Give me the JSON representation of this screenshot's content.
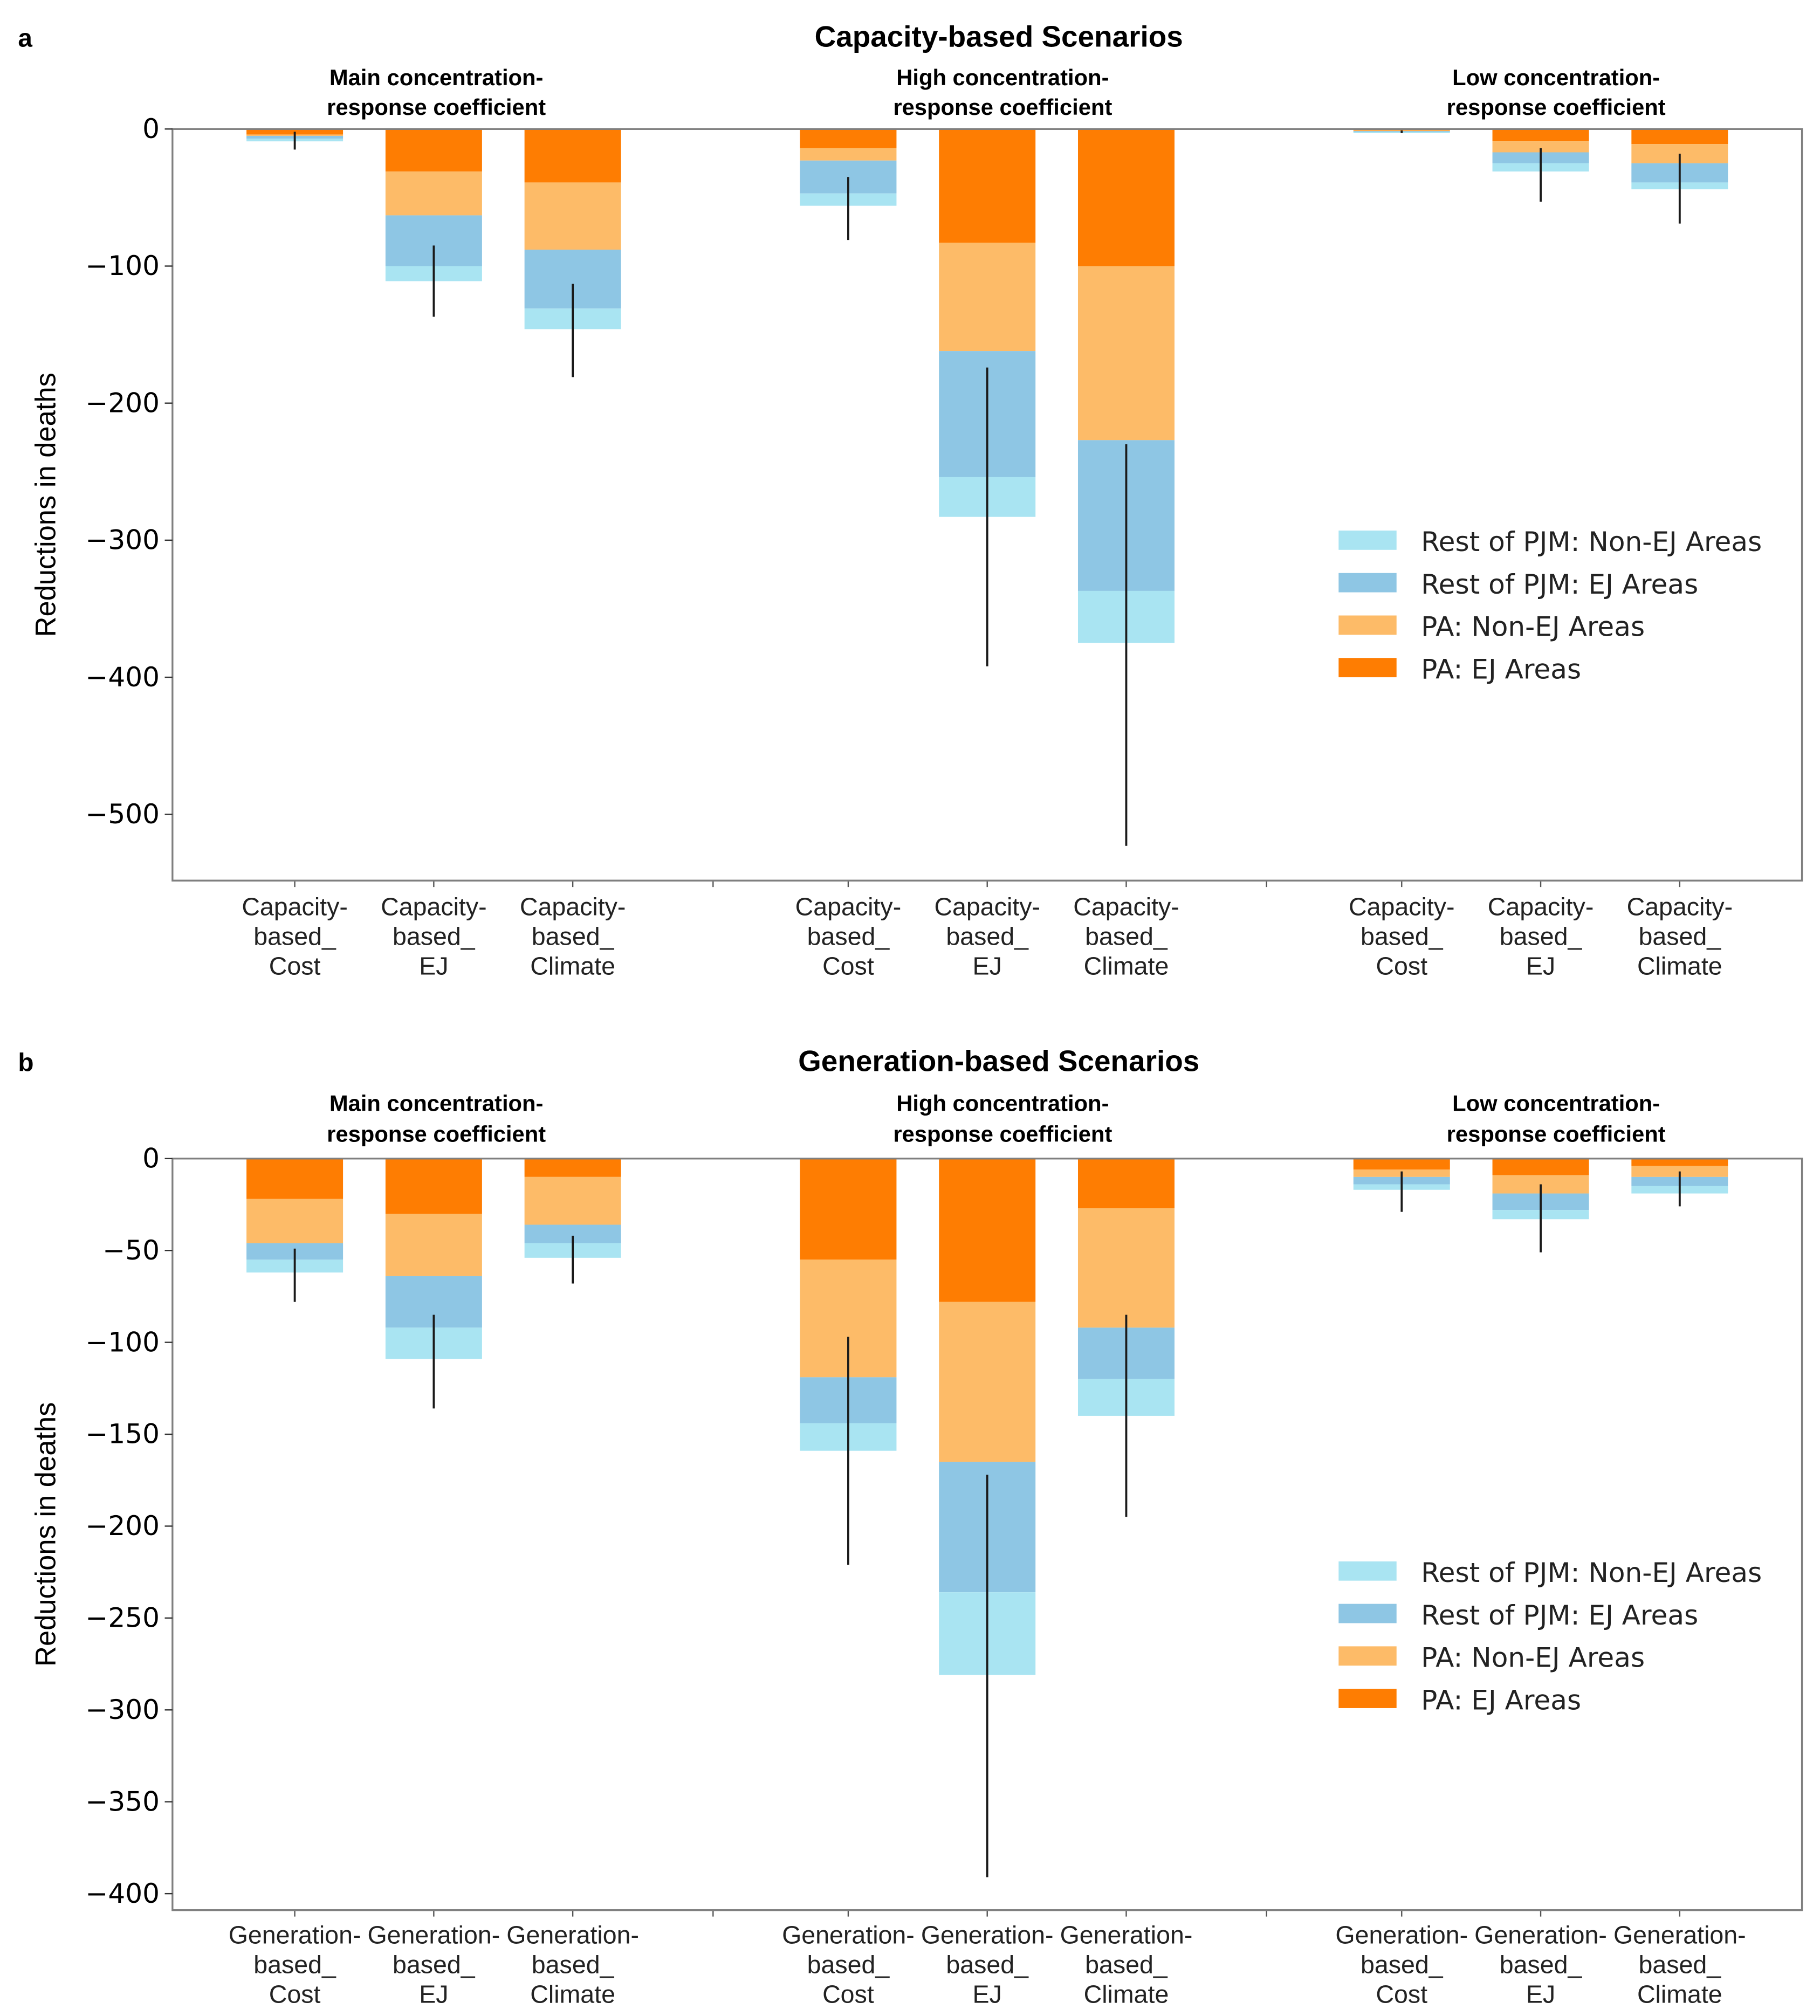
{
  "chart_data": [
    {
      "type": "bar",
      "stacked": true,
      "panel_letter": "a",
      "title": "Capacity-based Scenarios",
      "ylabel": "Reductions in deaths",
      "xlabel": "",
      "ylim": [
        -550,
        0
      ],
      "yticks": [
        0,
        -100,
        -200,
        -300,
        -400,
        -500
      ],
      "ytick_labels": [
        "0",
        "−100",
        "−200",
        "−300",
        "−400",
        "−500"
      ],
      "legend_position": "center-right",
      "grid": false,
      "groups": [
        {
          "title_lines": [
            "Main concentration-",
            "response coefficient"
          ],
          "bars": [
            {
              "label_lines": [
                "Capacity-",
                "based_",
                "Cost"
              ],
              "cumulative": {
                "pa_ej": -4,
                "pa_non_ej": -5,
                "rest_ej": -7,
                "rest_non_ej": -9
              },
              "error": [
                -2,
                -15
              ]
            },
            {
              "label_lines": [
                "Capacity-",
                "based_",
                "EJ"
              ],
              "cumulative": {
                "pa_ej": -31,
                "pa_non_ej": -63,
                "rest_ej": -100,
                "rest_non_ej": -111
              },
              "error": [
                -85,
                -137
              ]
            },
            {
              "label_lines": [
                "Capacity-",
                "based_",
                "Climate"
              ],
              "cumulative": {
                "pa_ej": -39,
                "pa_non_ej": -88,
                "rest_ej": -131,
                "rest_non_ej": -146
              },
              "error": [
                -113,
                -181
              ]
            }
          ]
        },
        {
          "title_lines": [
            "High concentration-",
            "response coefficient"
          ],
          "bars": [
            {
              "label_lines": [
                "Capacity-",
                "based_",
                "Cost"
              ],
              "cumulative": {
                "pa_ej": -14,
                "pa_non_ej": -23,
                "rest_ej": -47,
                "rest_non_ej": -56
              },
              "error": [
                -35,
                -81
              ]
            },
            {
              "label_lines": [
                "Capacity-",
                "based_",
                "EJ"
              ],
              "cumulative": {
                "pa_ej": -83,
                "pa_non_ej": -162,
                "rest_ej": -254,
                "rest_non_ej": -283
              },
              "error": [
                -174,
                -392
              ]
            },
            {
              "label_lines": [
                "Capacity-",
                "based_",
                "Climate"
              ],
              "cumulative": {
                "pa_ej": -100,
                "pa_non_ej": -227,
                "rest_ej": -337,
                "rest_non_ej": -375
              },
              "error": [
                -230,
                -523
              ]
            }
          ]
        },
        {
          "title_lines": [
            "Low concentration-",
            "response coefficient"
          ],
          "bars": [
            {
              "label_lines": [
                "Capacity-",
                "based_",
                "Cost"
              ],
              "cumulative": {
                "pa_ej": -1,
                "pa_non_ej": -1.5,
                "rest_ej": -2,
                "rest_non_ej": -3
              },
              "error": [
                -1,
                -3
              ]
            },
            {
              "label_lines": [
                "Capacity-",
                "based_",
                "EJ"
              ],
              "cumulative": {
                "pa_ej": -9,
                "pa_non_ej": -17,
                "rest_ej": -25,
                "rest_non_ej": -31
              },
              "error": [
                -14,
                -53
              ]
            },
            {
              "label_lines": [
                "Capacity-",
                "based_",
                "Climate"
              ],
              "cumulative": {
                "pa_ej": -11,
                "pa_non_ej": -25,
                "rest_ej": -39,
                "rest_non_ej": -44
              },
              "error": [
                -18,
                -69
              ]
            }
          ]
        }
      ]
    },
    {
      "type": "bar",
      "stacked": true,
      "panel_letter": "b",
      "title": "Generation-based Scenarios",
      "ylabel": "Reductions in deaths",
      "xlabel": "",
      "ylim": [
        -410,
        0
      ],
      "yticks": [
        0,
        -50,
        -100,
        -150,
        -200,
        -250,
        -300,
        -350,
        -400
      ],
      "ytick_labels": [
        "0",
        "−50",
        "−100",
        "−150",
        "−200",
        "−250",
        "−300",
        "−350",
        "−400"
      ],
      "legend_position": "center-right",
      "grid": false,
      "groups": [
        {
          "title_lines": [
            "Main concentration-",
            "response coefficient"
          ],
          "bars": [
            {
              "label_lines": [
                "Generation-",
                "based_",
                "Cost"
              ],
              "cumulative": {
                "pa_ej": -22,
                "pa_non_ej": -46,
                "rest_ej": -55,
                "rest_non_ej": -62
              },
              "error": [
                -49,
                -78
              ]
            },
            {
              "label_lines": [
                "Generation-",
                "based_",
                "EJ"
              ],
              "cumulative": {
                "pa_ej": -30,
                "pa_non_ej": -64,
                "rest_ej": -92,
                "rest_non_ej": -109
              },
              "error": [
                -85,
                -136
              ]
            },
            {
              "label_lines": [
                "Generation-",
                "based_",
                "Climate"
              ],
              "cumulative": {
                "pa_ej": -10,
                "pa_non_ej": -36,
                "rest_ej": -46,
                "rest_non_ej": -54
              },
              "error": [
                -42,
                -68
              ]
            }
          ]
        },
        {
          "title_lines": [
            "High concentration-",
            "response coefficient"
          ],
          "bars": [
            {
              "label_lines": [
                "Generation-",
                "based_",
                "Cost"
              ],
              "cumulative": {
                "pa_ej": -55,
                "pa_non_ej": -119,
                "rest_ej": -144,
                "rest_non_ej": -159
              },
              "error": [
                -97,
                -221
              ]
            },
            {
              "label_lines": [
                "Generation-",
                "based_",
                "EJ"
              ],
              "cumulative": {
                "pa_ej": -78,
                "pa_non_ej": -165,
                "rest_ej": -236,
                "rest_non_ej": -281
              },
              "error": [
                -172,
                -391
              ]
            },
            {
              "label_lines": [
                "Generation-",
                "based_",
                "Climate"
              ],
              "cumulative": {
                "pa_ej": -27,
                "pa_non_ej": -92,
                "rest_ej": -120,
                "rest_non_ej": -140
              },
              "error": [
                -85,
                -195
              ]
            }
          ]
        },
        {
          "title_lines": [
            "Low concentration-",
            "response coefficient"
          ],
          "bars": [
            {
              "label_lines": [
                "Generation-",
                "based_",
                "Cost"
              ],
              "cumulative": {
                "pa_ej": -6,
                "pa_non_ej": -10,
                "rest_ej": -14,
                "rest_non_ej": -17
              },
              "error": [
                -7,
                -29
              ]
            },
            {
              "label_lines": [
                "Generation-",
                "based_",
                "EJ"
              ],
              "cumulative": {
                "pa_ej": -9,
                "pa_non_ej": -19,
                "rest_ej": -28,
                "rest_non_ej": -33
              },
              "error": [
                -14,
                -51
              ]
            },
            {
              "label_lines": [
                "Generation-",
                "based_",
                "Climate"
              ],
              "cumulative": {
                "pa_ej": -4,
                "pa_non_ej": -10,
                "rest_ej": -15,
                "rest_non_ej": -19
              },
              "error": [
                -7,
                -26
              ]
            }
          ]
        }
      ]
    }
  ],
  "series": [
    {
      "key": "rest_non_ej",
      "name": "Rest of PJM: Non-EJ Areas",
      "color": "#a9e4f2"
    },
    {
      "key": "rest_ej",
      "name": "Rest of PJM: EJ Areas",
      "color": "#8ec6e4"
    },
    {
      "key": "pa_non_ej",
      "name": "PA: Non-EJ Areas",
      "color": "#fdbb68"
    },
    {
      "key": "pa_ej",
      "name": "PA: EJ Areas",
      "color": "#fe7d02"
    }
  ],
  "stack_order": [
    "pa_ej",
    "pa_non_ej",
    "rest_ej",
    "rest_non_ej"
  ],
  "legend_order": [
    "rest_non_ej",
    "rest_ej",
    "pa_non_ej",
    "pa_ej"
  ],
  "colors": {
    "axis": "#7f7f7f",
    "error_bar": "#1a1a1a",
    "text": "#000000"
  }
}
